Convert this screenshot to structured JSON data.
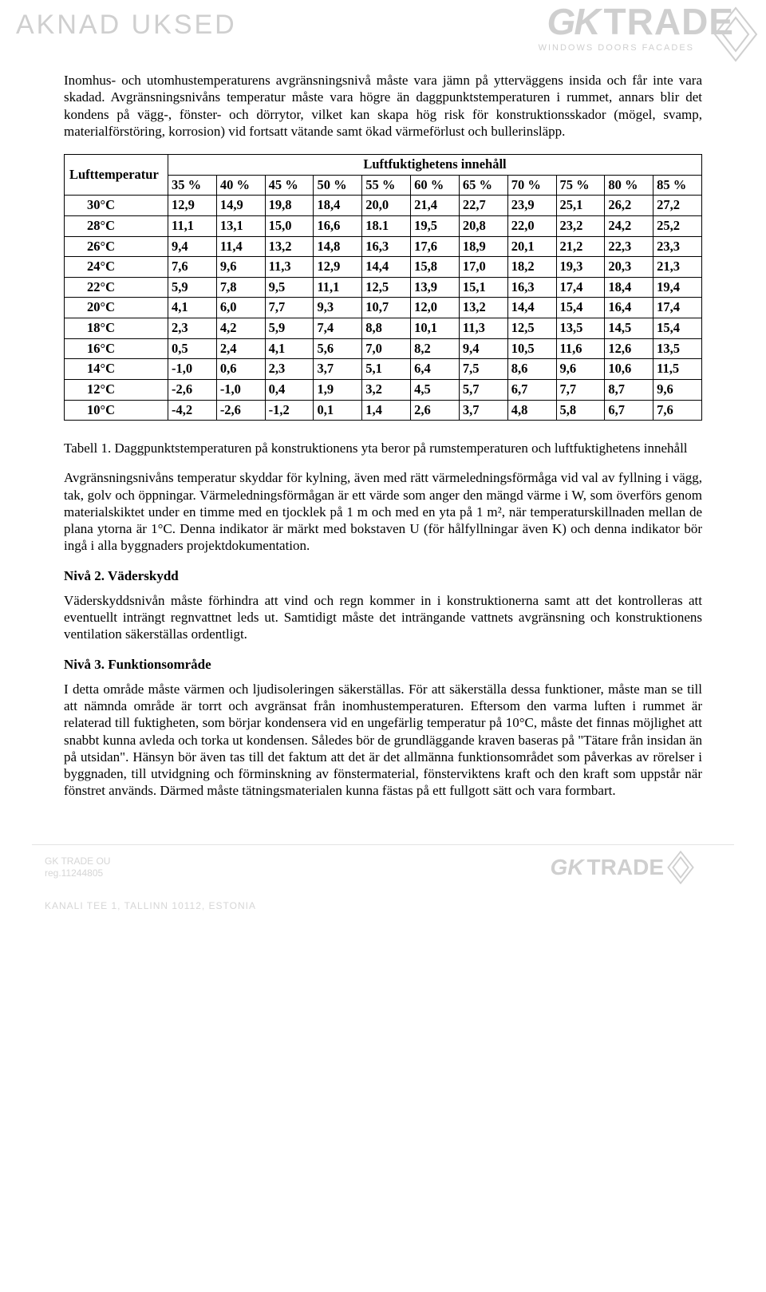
{
  "watermark": {
    "brand_left": "AKNAD UKSED",
    "logo_gk": "GK",
    "logo_trade": "TRADE",
    "logo_sub": "WINDOWS DOORS FACADES",
    "diamond_color": "#cfcfcf"
  },
  "paragraphs": {
    "p1": "Inomhus- och utomhustemperaturens avgränsningsnivå måste vara jämn på ytterväggens insida och får inte vara skadad. Avgränsningsnivåns temperatur måste vara högre än daggpunktstemperaturen i rummet, annars blir det kondens på vägg-, fönster- och dörrytor, vilket kan skapa hög risk för konstruktionsskador (mögel, svamp, materialförstöring, korrosion) vid fortsatt vätande samt ökad värmeförlust och bullerinsläpp."
  },
  "table": {
    "row_header": "Lufttemperatur",
    "col_header": "Luftfuktighetens innehåll",
    "percent_labels": [
      "35 %",
      "40 %",
      "45 %",
      "50 %",
      "55 %",
      "60 %",
      "65 %",
      "70 %",
      "75 %",
      "80 %",
      "85 %"
    ],
    "rows": [
      {
        "t": "30°C",
        "v": [
          "12,9",
          "14,9",
          "19,8",
          "18,4",
          "20,0",
          "21,4",
          "22,7",
          "23,9",
          "25,1",
          "26,2",
          "27,2"
        ]
      },
      {
        "t": "28°C",
        "v": [
          "11,1",
          "13,1",
          "15,0",
          "16,6",
          "18.1",
          "19,5",
          "20,8",
          "22,0",
          "23,2",
          "24,2",
          "25,2"
        ]
      },
      {
        "t": "26°C",
        "v": [
          "9,4",
          "11,4",
          "13,2",
          "14,8",
          "16,3",
          "17,6",
          "18,9",
          "20,1",
          "21,2",
          "22,3",
          "23,3"
        ]
      },
      {
        "t": "24°C",
        "v": [
          "7,6",
          "9,6",
          "11,3",
          "12,9",
          "14,4",
          "15,8",
          "17,0",
          "18,2",
          "19,3",
          "20,3",
          "21,3"
        ]
      },
      {
        "t": "22°C",
        "v": [
          "5,9",
          "7,8",
          "9,5",
          "11,1",
          "12,5",
          "13,9",
          "15,1",
          "16,3",
          "17,4",
          "18,4",
          "19,4"
        ]
      },
      {
        "t": "20°C",
        "v": [
          "4,1",
          "6,0",
          "7,7",
          "9,3",
          "10,7",
          "12,0",
          "13,2",
          "14,4",
          "15,4",
          "16,4",
          "17,4"
        ]
      },
      {
        "t": "18°C",
        "v": [
          "2,3",
          "4,2",
          "5,9",
          "7,4",
          "8,8",
          "10,1",
          "11,3",
          "12,5",
          "13,5",
          "14,5",
          "15,4"
        ]
      },
      {
        "t": "16°C",
        "v": [
          "0,5",
          "2,4",
          "4,1",
          "5,6",
          "7,0",
          "8,2",
          "9,4",
          "10,5",
          "11,6",
          "12,6",
          "13,5"
        ]
      },
      {
        "t": "14°C",
        "v": [
          "-1,0",
          "0,6",
          "2,3",
          "3,7",
          "5,1",
          "6,4",
          "7,5",
          "8,6",
          "9,6",
          "10,6",
          "11,5"
        ]
      },
      {
        "t": "12°C",
        "v": [
          "-2,6",
          "-1,0",
          "0,4",
          "1,9",
          "3,2",
          "4,5",
          "5,7",
          "6,7",
          "7,7",
          "8,7",
          "9,6"
        ]
      },
      {
        "t": "10°C",
        "v": [
          "-4,2",
          "-2,6",
          "-1,2",
          "0,1",
          "1,4",
          "2,6",
          "3,7",
          "4,8",
          "5,8",
          "6,7",
          "7,6"
        ]
      }
    ]
  },
  "after_table": {
    "caption": "Tabell 1. Daggpunktstemperaturen på konstruktionens yta beror på rumstemperaturen och luftfuktighetens innehåll",
    "p2": "Avgränsningsnivåns temperatur skyddar för kylning, även med rätt värmeledningsförmåga vid val av fyllning i vägg, tak, golv och öppningar. Värmeledningsförmågan är ett värde som anger den mängd värme i W, som överförs genom materialskiktet under en timme med en tjocklek på 1 m och med en yta på 1 m², när temperaturskillnaden mellan de plana ytorna är 1°C. Denna indikator är märkt med bokstaven U (för hålfyllningar även K) och denna indikator bör ingå i alla byggnaders projektdokumentation."
  },
  "sec2": {
    "title": "Nivå 2. Väderskydd",
    "body": "Väderskyddsnivån måste förhindra att vind och regn kommer in i konstruktionerna samt att det kontrolleras att eventuellt inträngt regnvattnet leds ut. Samtidigt måste det inträngande vattnets avgränsning och konstruktionens ventilation säkerställas ordentligt."
  },
  "sec3": {
    "title": "Nivå 3. Funktionsområde",
    "body": "I detta område måste värmen och ljudisoleringen säkerställas. För att säkerställa dessa funktioner, måste man se till att nämnda område är torrt och avgränsat från inomhustemperaturen. Eftersom den varma luften i rummet är relaterad till fuktigheten, som börjar kondensera vid en ungefärlig temperatur på 10°C, måste det finnas möjlighet att snabbt kunna avleda och torka ut kondensen. Således bör de grundläggande kraven baseras på \"Tätare från insidan än på utsidan\". Hänsyn bör även tas till det faktum att det är det allmänna funktionsområdet som påverkas av rörelser i byggnaden, till utvidgning och förminskning av fönstermaterial, fönsterviktens kraft och den kraft som uppstår när fönstret används. Därmed måste tätningsmaterialen kunna fästas på ett fullgott sätt och vara formbart."
  },
  "footer": {
    "line1": "GK TRADE OU",
    "line2": "reg.11244805",
    "addr": "KANALI TEE 1, TALLINN 10112, ESTONIA"
  }
}
